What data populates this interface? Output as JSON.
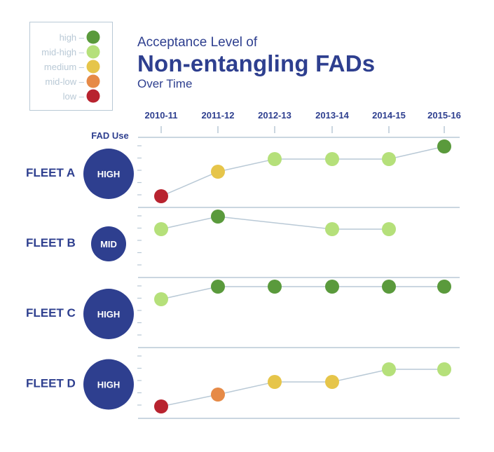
{
  "title": {
    "line1": "Acceptance Level of",
    "line2": "Non-entangling FADs",
    "line3": "Over Time"
  },
  "legend": [
    {
      "label": "high",
      "color": "#5a9a3c"
    },
    {
      "label": "mid-high",
      "color": "#b5e07a"
    },
    {
      "label": "medium",
      "color": "#e6c54a"
    },
    {
      "label": "mid-low",
      "color": "#e68a47"
    },
    {
      "label": "low",
      "color": "#b8232f"
    }
  ],
  "colors": {
    "accent": "#2e3f8f",
    "axis": "#b9c9d6",
    "legend_text": "#b9c9d6",
    "connector": "#b9c9d6"
  },
  "chart_data": {
    "type": "line",
    "title": "Acceptance Level of Non-entangling FADs Over Time",
    "x": [
      "2010-11",
      "2011-12",
      "2012-13",
      "2013-14",
      "2014-15",
      "2015-16"
    ],
    "levels": [
      "low",
      "mid-low",
      "medium",
      "mid-high",
      "high"
    ],
    "fad_use_label": "FAD Use",
    "series": [
      {
        "name": "FLEET A",
        "fad_use": "HIGH",
        "values": [
          "low",
          "medium",
          "mid-high",
          "mid-high",
          "mid-high",
          "high"
        ]
      },
      {
        "name": "FLEET B",
        "fad_use": "MID",
        "values": [
          "mid-high",
          "high",
          null,
          "mid-high",
          "mid-high",
          null
        ]
      },
      {
        "name": "FLEET C",
        "fad_use": "HIGH",
        "values": [
          "mid-high",
          "high",
          "high",
          "high",
          "high",
          "high"
        ]
      },
      {
        "name": "FLEET D",
        "fad_use": "HIGH",
        "values": [
          "low",
          "mid-low",
          "medium",
          "medium",
          "mid-high",
          "mid-high"
        ]
      }
    ]
  }
}
